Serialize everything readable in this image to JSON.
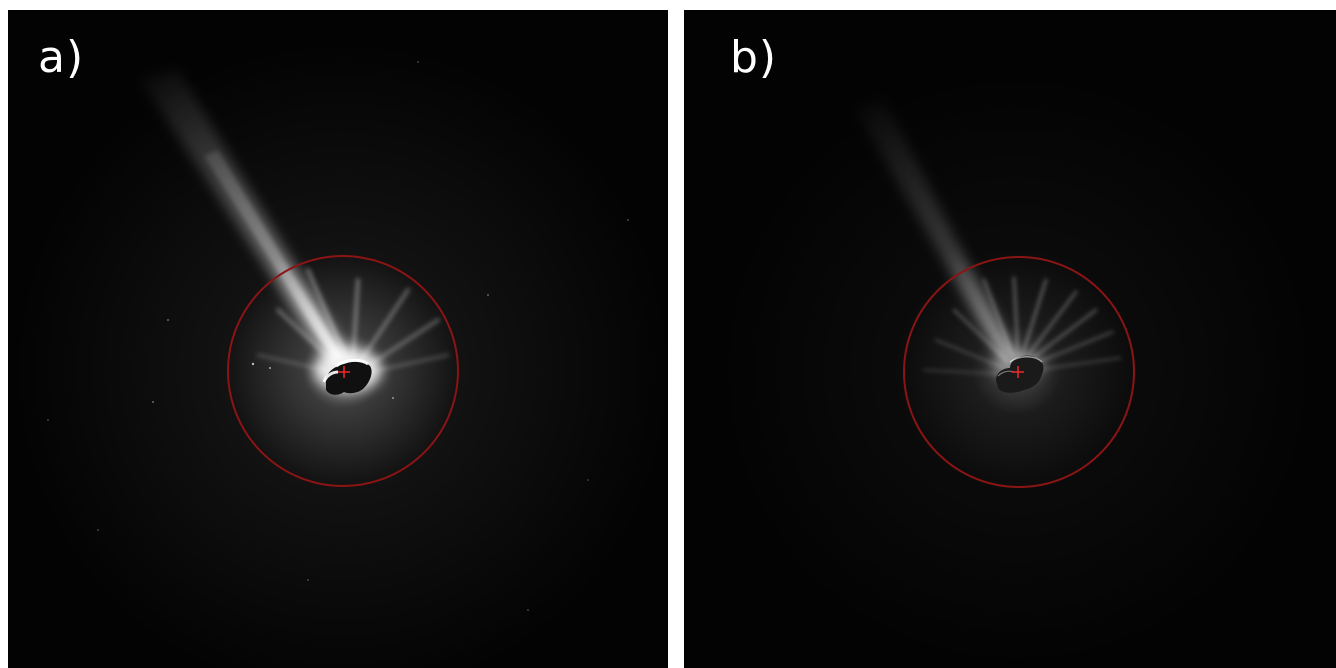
{
  "figure": {
    "panels": [
      {
        "id": "a",
        "label": "a)"
      },
      {
        "id": "b",
        "label": "b)"
      }
    ],
    "colors": {
      "background": "#030303",
      "separator": "#ffffff",
      "circle": "#8b1414",
      "nucleus_marker": "#ff2a2a",
      "label_text": "#ffffff"
    }
  }
}
